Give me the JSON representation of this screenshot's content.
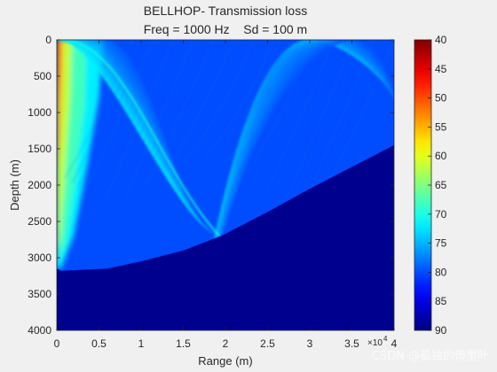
{
  "chart_data": {
    "type": "heatmap",
    "title": "BELLHOP- Transmission loss",
    "subtitle": "Freq = 1000 Hz    Sd = 100 m",
    "xlabel": "Range (m)",
    "ylabel": "Depth (m)",
    "x_ticks": [
      0,
      0.5,
      1,
      1.5,
      2,
      2.5,
      3,
      3.5,
      4
    ],
    "x_tick_labels": [
      "0",
      "0.5",
      "1",
      "1.5",
      "2",
      "2.5",
      "3",
      "3.5",
      "4"
    ],
    "x_multiplier": "×10",
    "x_multiplier_exponent": "4",
    "xlim": [
      0,
      4
    ],
    "y_ticks": [
      0,
      500,
      1000,
      1500,
      2000,
      2500,
      3000,
      3500,
      4000
    ],
    "y_tick_labels": [
      "0",
      "500",
      "1000",
      "1500",
      "2000",
      "2500",
      "3000",
      "3500",
      "4000"
    ],
    "ylim": [
      0,
      4000
    ],
    "y_reversed": true,
    "colorbar": {
      "colormap": "jet",
      "reversed": true,
      "range": [
        40,
        90
      ],
      "ticks": [
        40,
        45,
        50,
        55,
        60,
        65,
        70,
        75,
        80,
        85,
        90
      ],
      "tick_labels": [
        "40",
        "45",
        "50",
        "55",
        "60",
        "65",
        "70",
        "75",
        "80",
        "85",
        "90"
      ]
    },
    "bathymetry": {
      "range_x1e4": [
        0,
        0.05,
        0.6,
        1.0,
        1.5,
        1.95,
        2.5,
        3.0,
        3.5,
        4.0
      ],
      "depth_m": [
        3150,
        3180,
        3150,
        3050,
        2900,
        2700,
        2370,
        2050,
        1750,
        1450
      ]
    },
    "background_level_db": 80
  },
  "watermark": "CSDN @孤独的傅里叶",
  "colors": {
    "figure_bg": "#f0f0f0",
    "bottom_fill": "#00008f",
    "axis": "#262626"
  }
}
